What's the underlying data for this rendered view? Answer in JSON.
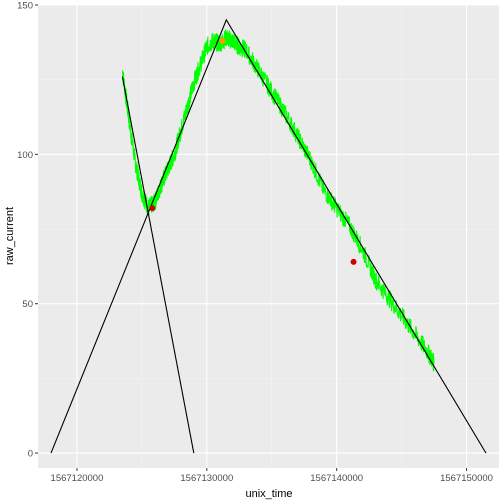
{
  "chart_data": {
    "type": "line",
    "title": "",
    "xlabel": "unix_time",
    "ylabel": "raw_current",
    "xlim": [
      1567117000,
      1567152500
    ],
    "ylim": [
      -5,
      150
    ],
    "x_ticks": [
      1567120000,
      1567130000,
      1567140000,
      1567150000
    ],
    "x_tick_labels": [
      "1567120000",
      "1567130000",
      "1567140000",
      "1567150000"
    ],
    "y_ticks": [
      0,
      50,
      100,
      150
    ],
    "y_tick_labels": [
      "0",
      "50",
      "100",
      "150"
    ],
    "grid": true,
    "colors": {
      "panel": "#ebebeb",
      "grid_major": "#ffffff",
      "grid_minor": "#f4f4f4",
      "signal": "#00ff00",
      "trend": "#000000",
      "point_red": "#cc0000",
      "point_orange": "#ff9900"
    },
    "series": [
      {
        "type": "noisy_line",
        "color": "#00ff00",
        "x": [
          1567123500,
          1567124000,
          1567124500,
          1567125000,
          1567125500,
          1567126000,
          1567126500,
          1567127000,
          1567127500,
          1567128000,
          1567128500,
          1567129000,
          1567129500,
          1567130000,
          1567130500,
          1567131000,
          1567131500,
          1567132000,
          1567132500,
          1567133000,
          1567134000,
          1567135000,
          1567136000,
          1567137000,
          1567138000,
          1567139000,
          1567140000,
          1567141000,
          1567142000,
          1567143000,
          1567144000,
          1567145000,
          1567146000,
          1567147000,
          1567147500
        ],
        "y": [
          128,
          112,
          97,
          87,
          82,
          84,
          90,
          95,
          100,
          108,
          116,
          124,
          130,
          136,
          138,
          137,
          139,
          138,
          136,
          135,
          128,
          121,
          114,
          106,
          98,
          88,
          82,
          76,
          68,
          58,
          52,
          46,
          40,
          34,
          30
        ]
      },
      {
        "type": "line",
        "color": "#000000",
        "x": [
          1567123500,
          1567129000
        ],
        "y": [
          126,
          0
        ]
      },
      {
        "type": "line",
        "color": "#000000",
        "x": [
          1567118000,
          1567131500,
          1567151500
        ],
        "y": [
          0,
          145,
          0
        ]
      },
      {
        "type": "points",
        "color": "#cc0000",
        "x": [
          1567125800,
          1567141300
        ],
        "y": [
          82,
          64
        ]
      },
      {
        "type": "points",
        "color": "#ff9900",
        "x": [
          1567131200
        ],
        "y": [
          138
        ]
      }
    ]
  }
}
